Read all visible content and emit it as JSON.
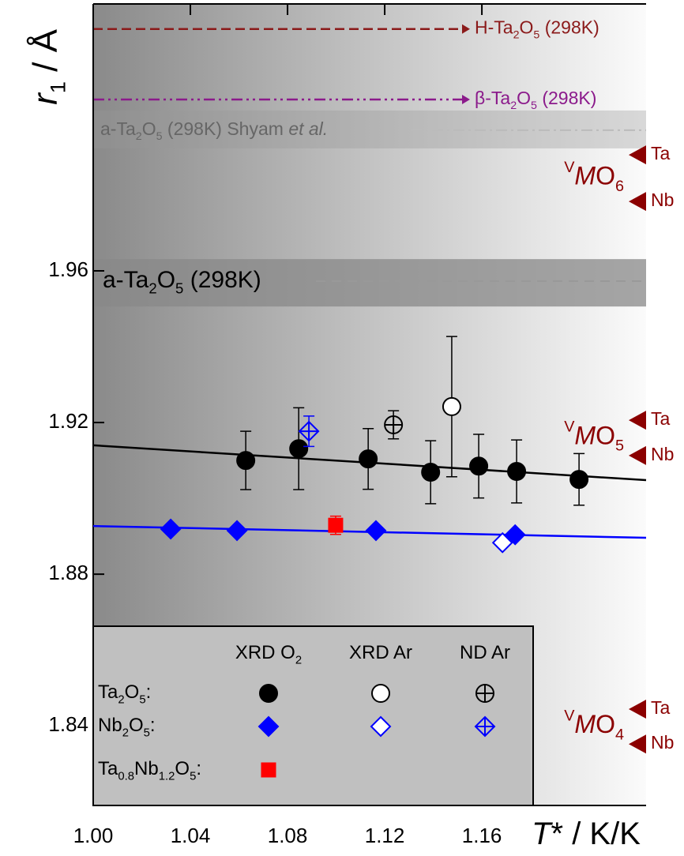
{
  "chart_data": {
    "type": "scatter",
    "x_label": "T* / K/K",
    "y_label": "r1 / Å",
    "xlim": [
      1.0,
      1.2276
    ],
    "ylim": [
      1.819,
      2.0304
    ],
    "xticks": [
      {
        "value": 1.0,
        "label": "1.00"
      },
      1.04,
      1.08,
      1.12,
      1.16
    ],
    "yticks": [
      1.84,
      1.88,
      1.92,
      1.96
    ],
    "legend_columns": [
      "XRD O2",
      "XRD Ar",
      "ND Ar"
    ],
    "series": [
      {
        "name": "Ta2O5:",
        "marker": "circle",
        "color": "#000000",
        "datasets": [
          {
            "style": "filled",
            "x": [
              1.0628,
              1.0846,
              1.1132,
              1.1389,
              1.1587,
              1.1743,
              1.2
            ],
            "values": [
              1.91,
              1.9131,
              1.9104,
              1.9069,
              1.9085,
              1.9071,
              1.905
            ],
            "errors": [
              0.0077,
              0.0108,
              0.008,
              0.0083,
              0.0084,
              0.0083,
              0.0068
            ]
          },
          {
            "style": "open",
            "x": [
              1.1476
            ],
            "values": [
              1.9242
            ],
            "errors": [
              0.0185
            ]
          },
          {
            "style": "crossed",
            "x": [
              1.1236
            ],
            "values": [
              1.9194
            ],
            "errors": [
              0.0037
            ]
          }
        ]
      },
      {
        "name": "Nb2O5:",
        "marker": "diamond",
        "color": "#0000ff",
        "datasets": [
          {
            "style": "filled",
            "x": [
              1.0319,
              1.0592,
              1.1164,
              1.1737
            ],
            "values": [
              1.8919,
              1.8915,
              1.8915,
              1.8904
            ],
            "errors": [
              0.0008,
              0.0008,
              0.0008,
              0.0008
            ]
          },
          {
            "style": "open",
            "x": [
              1.1685
            ],
            "values": [
              1.8883
            ],
            "errors": [
              0.0008
            ]
          },
          {
            "style": "crossed",
            "x": [
              1.0888
            ],
            "values": [
              1.9177
            ],
            "errors": [
              0.004
            ]
          }
        ]
      },
      {
        "name": "Ta0.8Nb1.2O5:",
        "marker": "square",
        "color": "#ff0000",
        "datasets": [
          {
            "style": "filled",
            "x": [
              1.0998
            ],
            "values": [
              1.8929
            ],
            "errors": [
              0.0024
            ]
          }
        ]
      }
    ],
    "fits": [
      {
        "color": "#000000",
        "x": [
          1.0,
          1.2276
        ],
        "values": [
          1.914,
          1.9048
        ]
      },
      {
        "color": "#0000ff",
        "x": [
          1.0,
          1.2276
        ],
        "values": [
          1.8927,
          1.8896
        ]
      }
    ],
    "reference_lines": [
      {
        "label": "H-Ta2O5 (298K)",
        "value": 2.0238,
        "color": "#8b1a1a",
        "style": "dash-arrow"
      },
      {
        "label": "β-Ta2O5 (298K)",
        "value": 2.0052,
        "color": "#8b1a8b",
        "style": "dashdot-arrow"
      }
    ],
    "reference_bands": [
      {
        "label": "a-Ta2O5 (298K) Shyam et al.",
        "value": 1.9971,
        "low": 1.9923,
        "high": 2.0023,
        "color": "#999999",
        "style": "dashdot"
      },
      {
        "label": "a-Ta2O5 (298K)",
        "value": 1.9573,
        "low": 1.9506,
        "high": 1.9631,
        "color": "#888888",
        "style": "dash"
      }
    ],
    "coordination_markers": [
      {
        "label": "VMO6",
        "items": [
          {
            "label": "Ta",
            "value": 1.9906
          },
          {
            "label": "Nb",
            "value": 1.9783
          }
        ]
      },
      {
        "label": "VMO5",
        "items": [
          {
            "label": "Ta",
            "value": 1.9206
          },
          {
            "label": "Nb",
            "value": 1.9113
          }
        ]
      },
      {
        "label": "VMO4",
        "items": [
          {
            "label": "Ta",
            "value": 1.8444
          },
          {
            "label": "Nb",
            "value": 1.8352
          }
        ]
      }
    ],
    "marker_color": "#8b0000"
  }
}
